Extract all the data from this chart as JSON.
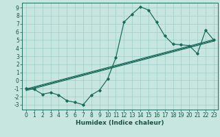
{
  "xlabel": "Humidex (Indice chaleur)",
  "bg_color": "#c8e6e0",
  "line_color": "#1a6b5a",
  "xlim": [
    -0.5,
    23.5
  ],
  "ylim": [
    -3.6,
    9.6
  ],
  "xticks": [
    0,
    1,
    2,
    3,
    4,
    5,
    6,
    7,
    8,
    9,
    10,
    11,
    12,
    13,
    14,
    15,
    16,
    17,
    18,
    19,
    20,
    21,
    22,
    23
  ],
  "yticks": [
    -3,
    -2,
    -1,
    0,
    1,
    2,
    3,
    4,
    5,
    6,
    7,
    8,
    9
  ],
  "data_x": [
    0,
    1,
    2,
    3,
    4,
    5,
    6,
    7,
    8,
    9,
    10,
    11,
    12,
    13,
    14,
    15,
    16,
    17,
    18,
    19,
    20,
    21,
    22,
    23
  ],
  "data_y": [
    -1.0,
    -1.1,
    -1.7,
    -1.5,
    -1.8,
    -2.5,
    -2.7,
    -3.0,
    -1.8,
    -1.2,
    0.2,
    2.8,
    7.2,
    8.2,
    9.1,
    8.7,
    7.2,
    5.5,
    4.5,
    4.4,
    4.3,
    3.3,
    6.2,
    5.0
  ],
  "trend_lines": [
    {
      "x0": 0,
      "y0": -1.25,
      "x1": 23,
      "y1": 4.85
    },
    {
      "x0": 0,
      "y0": -1.15,
      "x1": 23,
      "y1": 4.95
    },
    {
      "x0": 0,
      "y0": -1.05,
      "x1": 23,
      "y1": 5.05
    }
  ],
  "grid_color": "#9ecfc8",
  "font_color": "#1a5040",
  "tick_fontsize": 5.5,
  "xlabel_fontsize": 6.5
}
